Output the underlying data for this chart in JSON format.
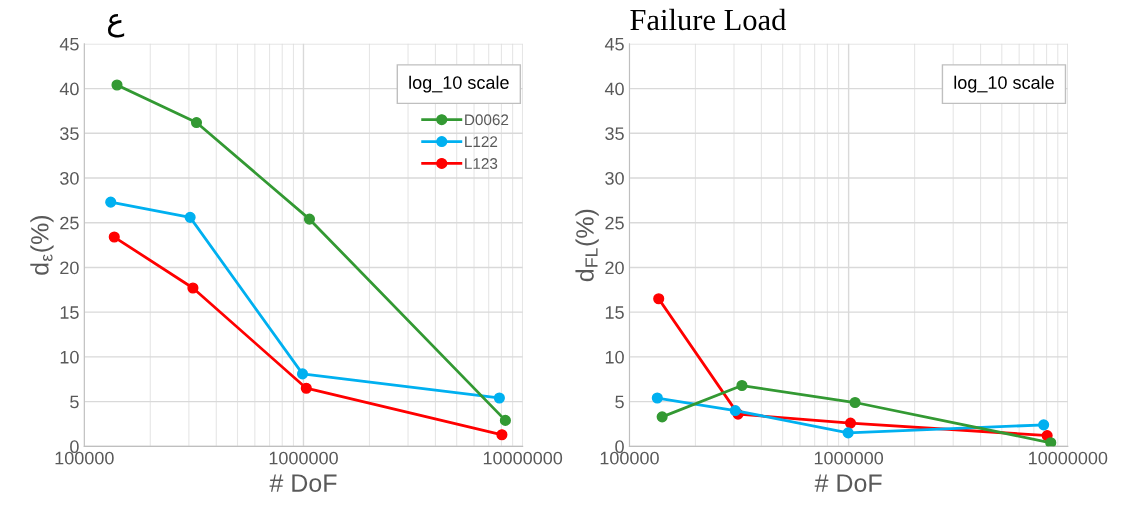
{
  "chart_data": [
    {
      "type": "line",
      "title": "ع",
      "xlabel": "# DoF",
      "ylabel": "d$_{ε}$(%)",
      "log": "x",
      "xlim": [
        100000,
        10000000
      ],
      "xticks": [
        100000,
        1000000,
        10000000
      ],
      "ylim": [
        0,
        45
      ],
      "yticks": [
        0,
        5,
        10,
        15,
        20,
        25,
        30,
        35,
        40,
        45
      ],
      "grid": true,
      "marker": "circle",
      "legend": "top right",
      "annotations": [
        "log_10 scale"
      ],
      "series": [
        {
          "name": "D0062",
          "color": "#339933",
          "x": [
            141000,
            325000,
            1065000,
            8340000
          ],
          "values": [
            40.4,
            36.2,
            25.4,
            2.9
          ]
        },
        {
          "name": "L122",
          "color": "#00b0f0",
          "x": [
            132000,
            304000,
            990000,
            7830000
          ],
          "values": [
            27.3,
            25.6,
            8.1,
            5.4
          ]
        },
        {
          "name": "L123",
          "color": "#ff0000",
          "x": [
            137000,
            313000,
            1030000,
            8040000
          ],
          "values": [
            23.4,
            17.7,
            6.5,
            1.3
          ]
        }
      ]
    },
    {
      "type": "line",
      "title": "Failure Load",
      "xlabel": "# DoF",
      "ylabel": "d$_{FL}$(%)",
      "log": "x",
      "xlim": [
        100000,
        10000000
      ],
      "xticks": [
        100000,
        1000000,
        10000000
      ],
      "ylim": [
        0,
        45
      ],
      "yticks": [
        0,
        5,
        10,
        15,
        20,
        25,
        30,
        35,
        40,
        45
      ],
      "grid": true,
      "marker": "circle",
      "annotations": [
        "log_10 scale"
      ],
      "series": [
        {
          "color": "#339933",
          "x": [
            141000,
            326000,
            1070000,
            8360000
          ],
          "values": [
            3.3,
            6.8,
            4.9,
            0.4
          ]
        },
        {
          "color": "#00b0f0",
          "x": [
            134000,
            304000,
            995000,
            7760000
          ],
          "values": [
            5.4,
            4.0,
            1.5,
            2.4
          ]
        },
        {
          "color": "#ff0000",
          "x": [
            136000,
            313000,
            1020000,
            8050000
          ],
          "values": [
            16.5,
            3.6,
            2.6,
            1.2
          ]
        }
      ]
    }
  ]
}
